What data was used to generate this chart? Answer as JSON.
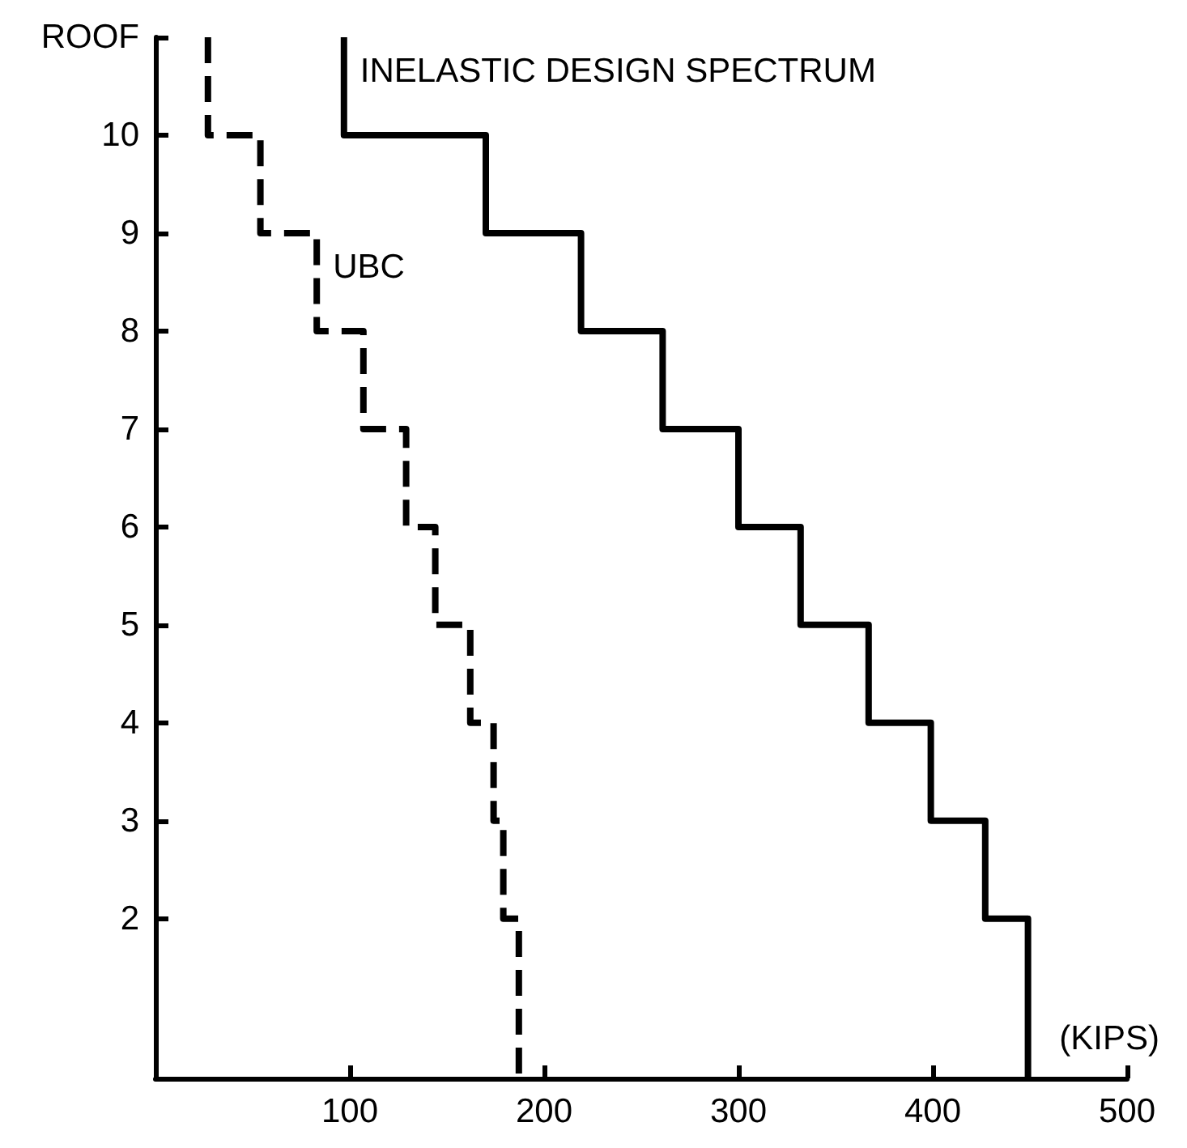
{
  "chart_data": {
    "type": "step",
    "orientation": "horizontal",
    "xlabel": "(KIPS)",
    "xlim": [
      0,
      500
    ],
    "xticks": [
      100,
      200,
      300,
      400,
      500
    ],
    "ylim": [
      0.37,
      11
    ],
    "yticks": [
      2,
      3,
      4,
      5,
      6,
      7,
      8,
      9,
      10,
      {
        "value": 11,
        "label": "ROOF"
      }
    ],
    "grid": false,
    "legend": false,
    "series": [
      {
        "name": "INELASTIC DESIGN SPECTRUM",
        "color": "#000000",
        "line_style": "solid",
        "x": [
          11,
          10,
          9,
          8,
          7,
          6,
          5,
          4,
          3,
          2,
          0.37
        ],
        "values": [
          97,
          170,
          219,
          261,
          300,
          332,
          367,
          399,
          427,
          449,
          449
        ]
      },
      {
        "name": "UBC",
        "color": "#000000",
        "line_style": "dashed",
        "x": [
          11,
          10,
          9,
          8,
          7,
          6,
          5,
          4,
          3,
          2,
          0.37
        ],
        "values": [
          27,
          54,
          83,
          107,
          129,
          144,
          162,
          174,
          179,
          187,
          187
        ]
      }
    ]
  }
}
